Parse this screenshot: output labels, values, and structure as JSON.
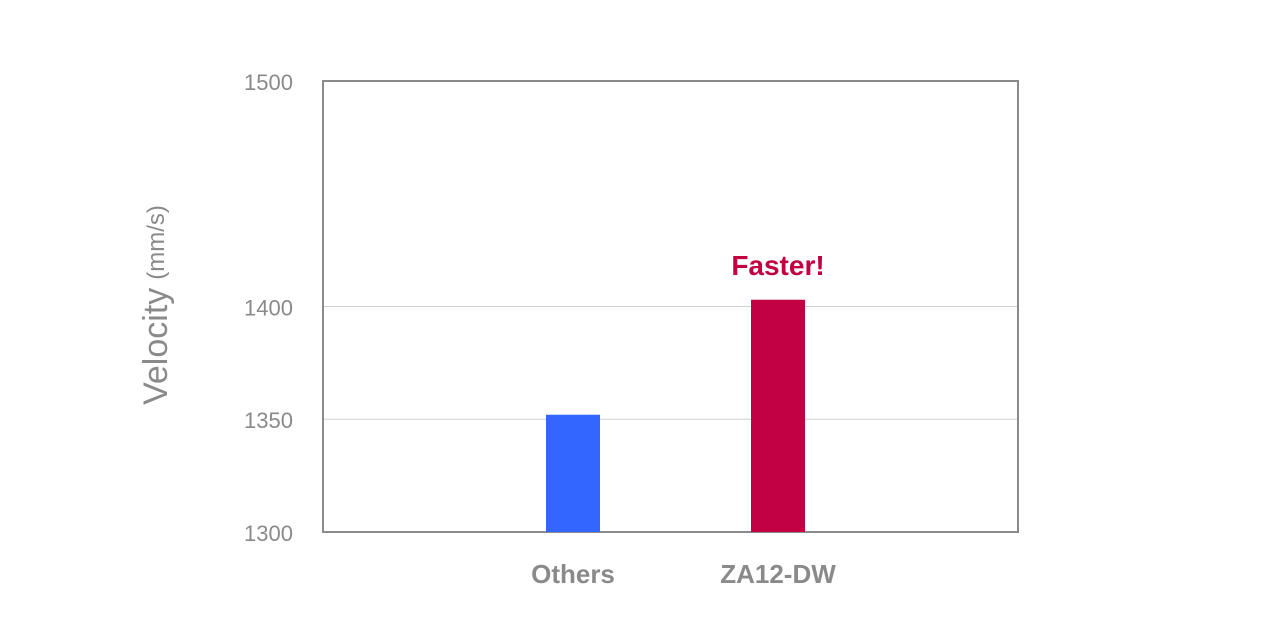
{
  "chart_data": {
    "type": "bar",
    "y_label": "Velocity",
    "y_unit": "(mm/s)",
    "categories": [
      "Others",
      "ZA12-DW"
    ],
    "values": [
      1352,
      1403
    ],
    "colors": [
      "#3366ff",
      "#c20044"
    ],
    "ylim": [
      1300,
      1500
    ],
    "yticks": [
      1300,
      1350,
      1400,
      1500
    ],
    "grid": true,
    "annotation": {
      "text": "Faster!",
      "category": 1,
      "color": "#c20044"
    }
  }
}
